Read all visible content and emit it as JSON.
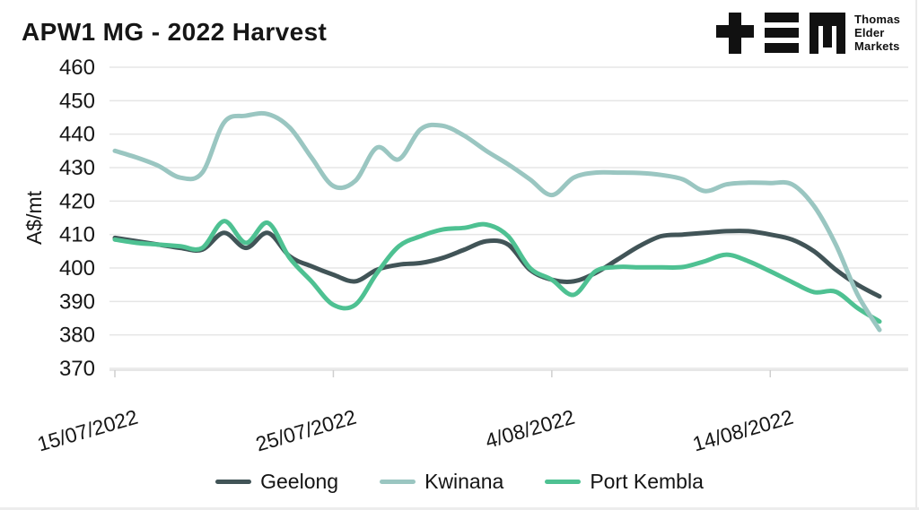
{
  "header": {
    "title": "APW1 MG - 2022 Harvest"
  },
  "logo": {
    "lines": [
      "Thomas",
      "Elder",
      "Markets"
    ],
    "color": "#111111",
    "glyphs": [
      "plus-glyph",
      "triple-bar-glyph",
      "m-glyph"
    ]
  },
  "chart_data": {
    "type": "line",
    "title": "APW1 MG - 2022 Harvest",
    "xlabel": "",
    "ylabel": "A$/mt",
    "ylim": [
      370,
      460
    ],
    "y_ticks": [
      460,
      450,
      440,
      430,
      420,
      410,
      400,
      390,
      380,
      370
    ],
    "grid": "horizontal",
    "legend_position": "bottom",
    "x": [
      "15/07/2022",
      "16/07/2022",
      "17/07/2022",
      "18/07/2022",
      "19/07/2022",
      "20/07/2022",
      "21/07/2022",
      "22/07/2022",
      "23/07/2022",
      "24/07/2022",
      "25/07/2022",
      "26/07/2022",
      "27/07/2022",
      "28/07/2022",
      "29/07/2022",
      "30/07/2022",
      "31/07/2022",
      "1/08/2022",
      "2/08/2022",
      "3/08/2022",
      "4/08/2022",
      "5/08/2022",
      "6/08/2022",
      "7/08/2022",
      "8/08/2022",
      "9/08/2022",
      "10/08/2022",
      "11/08/2022",
      "12/08/2022",
      "13/08/2022",
      "14/08/2022",
      "15/08/2022",
      "16/08/2022",
      "17/08/2022",
      "18/08/2022",
      "19/08/2022"
    ],
    "x_tick_indices": [
      0,
      10,
      20,
      30
    ],
    "x_tick_labels": [
      "15/07/2022",
      "25/07/2022",
      "4/08/2022",
      "14/08/2022"
    ],
    "series": [
      {
        "name": "Geelong",
        "color": "#415457",
        "values": [
          409,
          408,
          407,
          406,
          405.5,
          410.5,
          406,
          410.5,
          403.5,
          400.5,
          398,
          396,
          399.5,
          401,
          401.5,
          403,
          405.5,
          408,
          407,
          399.5,
          396.5,
          396,
          398.5,
          402.5,
          406.5,
          409.5,
          410,
          410.5,
          411,
          411,
          410,
          408.5,
          405,
          399.5,
          395,
          391.5
        ]
      },
      {
        "name": "Kwinana",
        "color": "#9ac6c1",
        "values": [
          435,
          433,
          430.5,
          427,
          428.5,
          443.5,
          445.5,
          446,
          442,
          433,
          424.5,
          426,
          436,
          432.5,
          441.5,
          442.5,
          439.5,
          435,
          431,
          426.5,
          421.8,
          427,
          428.5,
          428.5,
          428.4,
          427.8,
          426.5,
          423,
          425,
          425.5,
          425.4,
          425,
          418.5,
          407,
          392,
          381.5
        ]
      },
      {
        "name": "Port Kembla",
        "color": "#4ec192",
        "values": [
          408.5,
          407.5,
          407,
          406.5,
          406,
          414,
          407.5,
          413.5,
          403,
          396,
          389,
          389,
          398.5,
          406.5,
          409.5,
          411.5,
          412,
          413,
          409.5,
          400,
          396.5,
          392,
          399,
          400.3,
          400.2,
          400.2,
          400.3,
          402,
          404,
          402,
          399,
          395.8,
          392.8,
          392.9,
          388,
          384
        ]
      }
    ],
    "z_order": [
      0,
      2,
      1
    ]
  }
}
